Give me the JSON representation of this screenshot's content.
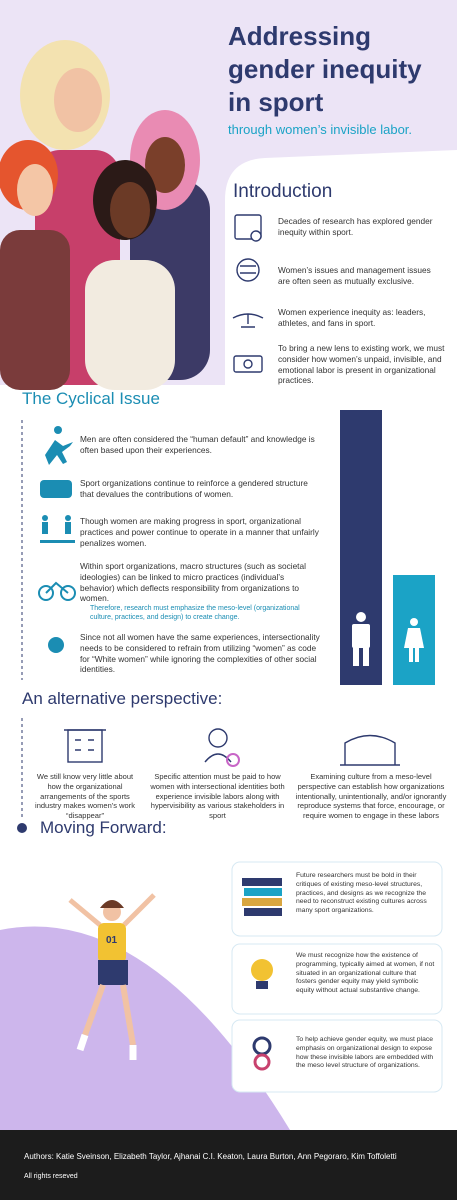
{
  "header": {
    "title": "Addressing gender inequity in sport",
    "subtitle": "through women’s invisible labor."
  },
  "introduction": {
    "heading": "Introduction",
    "items": [
      "Decades of research has explored gender inequity within sport.",
      "Women’s issues and management issues are often seen as mutually exclusive.",
      "Women experience inequity as: leaders, athletes, and fans in sport.",
      "To bring a new lens to existing work, we must consider how women’s unpaid, invisible, and emotional labor is present in organizational practices."
    ]
  },
  "cyclical_issue": {
    "heading": "The Cyclical Issue",
    "items": [
      "Men are often considered the “human default” and knowledge is often based upon their experiences.",
      "Sport organizations continue to reinforce a gendered structure that devalues the contributions of women.",
      "Though women are making progress in sport, organizational practices and power continue to operate in a manner that unfairly penalizes women.",
      "Within sport organizations, macro structures (such as societal ideologies) can be linked to micro practices (individual’s behavior) which deflects responsibility from organizations to women.",
      "Since not all women have the same experiences, intersectionality needs to be considered to refrain from utilizing “women” as code for “White women” while ignoring the complexities of other social identities."
    ],
    "note": "Therefore, research must emphasize the meso-level (organizational culture, practices, and design) to create change."
  },
  "alternative_perspective": {
    "heading": "An alternative perspective:",
    "items": [
      "We still know very little about how the organizational arrangements of the sports industry makes women’s work “disappear”",
      "Specific attention must be paid to how women with intersectional identities both experience invisible labors along with hypervisibility as various stakeholders in sport",
      "Examining culture from a meso-level perspective can establish how organizations intentionally, unintentionally, and/or ignorantly reproduce systems that force, encourage, or require women to engage in these labors"
    ]
  },
  "moving_forward": {
    "heading": "Moving Forward:",
    "bib": "01",
    "items": [
      "Future researchers must be bold in their critiques of existing meso-level structures, practices, and designs as we recognize the need to reconstruct existing cultures across many sport organizations.",
      "We must recognize how the existence of programming, typically aimed at women, if not situated in an organizational culture that fosters gender equity may yield symbolic equity without actual substantive change.",
      "To help achieve gender equity, we must place emphasis on organizational design to expose how these invisible labors are embedded with the meso level structure of organizations."
    ]
  },
  "footer": {
    "authors": "Authors: Katie Sveinson, Elizabeth Taylor, Ajhanai C.I. Keaton, Laura Burton, Ann Pegoraro, Kim Toffoletti",
    "rights": "All rights reseved"
  }
}
